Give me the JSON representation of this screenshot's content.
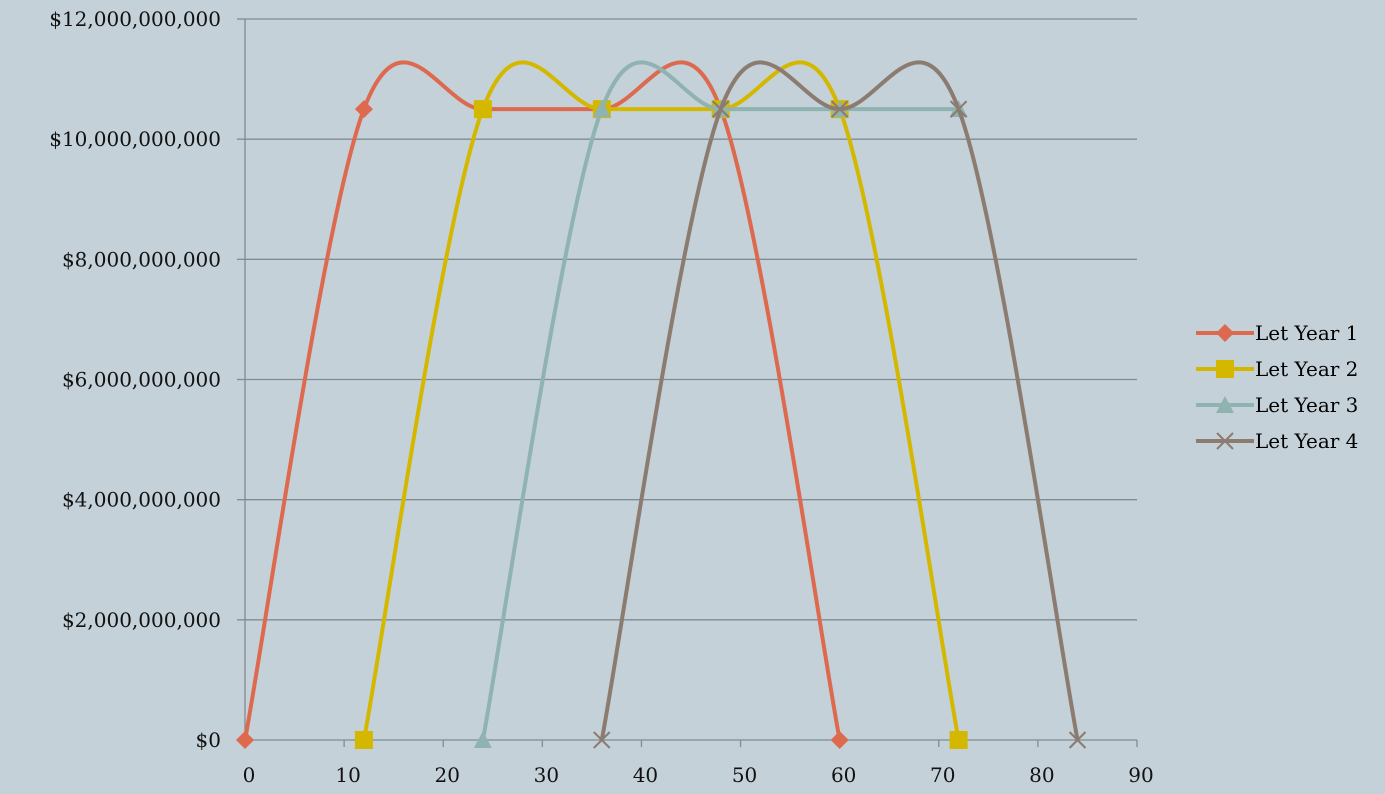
{
  "chart_data": {
    "type": "line",
    "title": "",
    "xlabel": "",
    "ylabel": "",
    "xlim": [
      0,
      90
    ],
    "ylim": [
      0,
      12000000000
    ],
    "x_ticks": [
      0,
      10,
      20,
      30,
      40,
      50,
      60,
      70,
      80,
      90
    ],
    "x_tick_labels": [
      "0",
      "10",
      "20",
      "30",
      "40",
      "50",
      "60",
      "70",
      "80",
      "90"
    ],
    "y_ticks": [
      0,
      2000000000,
      4000000000,
      6000000000,
      8000000000,
      10000000000,
      12000000000
    ],
    "y_tick_labels": [
      "$0",
      "$2,000,000,000",
      "$4,000,000,000",
      "$6,000,000,000",
      "$8,000,000,000",
      "$10,000,000,000",
      "$12,000,000,000"
    ],
    "grid": "horizontal",
    "smooth": true,
    "legend_position": "right",
    "series": [
      {
        "name": "Let Year 1",
        "color": "#dd6a4e",
        "marker": "diamond",
        "x": [
          0,
          12,
          24,
          36,
          48,
          60
        ],
        "y": [
          0,
          10500000000,
          10500000000,
          10500000000,
          10500000000,
          0
        ]
      },
      {
        "name": "Let Year 2",
        "color": "#d4b800",
        "marker": "square",
        "x": [
          12,
          24,
          36,
          48,
          60,
          72
        ],
        "y": [
          0,
          10500000000,
          10500000000,
          10500000000,
          10500000000,
          0
        ]
      },
      {
        "name": "Let Year 3",
        "color": "#8fb3b1",
        "marker": "triangle",
        "x": [
          24,
          36,
          48,
          60,
          72
        ],
        "y": [
          0,
          10500000000,
          10500000000,
          10500000000,
          10500000000
        ]
      },
      {
        "name": "Let Year 4",
        "color": "#8c7b70",
        "marker": "x",
        "x": [
          36,
          48,
          60,
          72,
          84
        ],
        "y": [
          0,
          10500000000,
          10500000000,
          10500000000,
          0
        ]
      }
    ]
  },
  "legend": {
    "items": [
      {
        "label": "Let Year 1"
      },
      {
        "label": "Let Year 2"
      },
      {
        "label": "Let Year 3"
      },
      {
        "label": "Let Year 4"
      }
    ]
  }
}
